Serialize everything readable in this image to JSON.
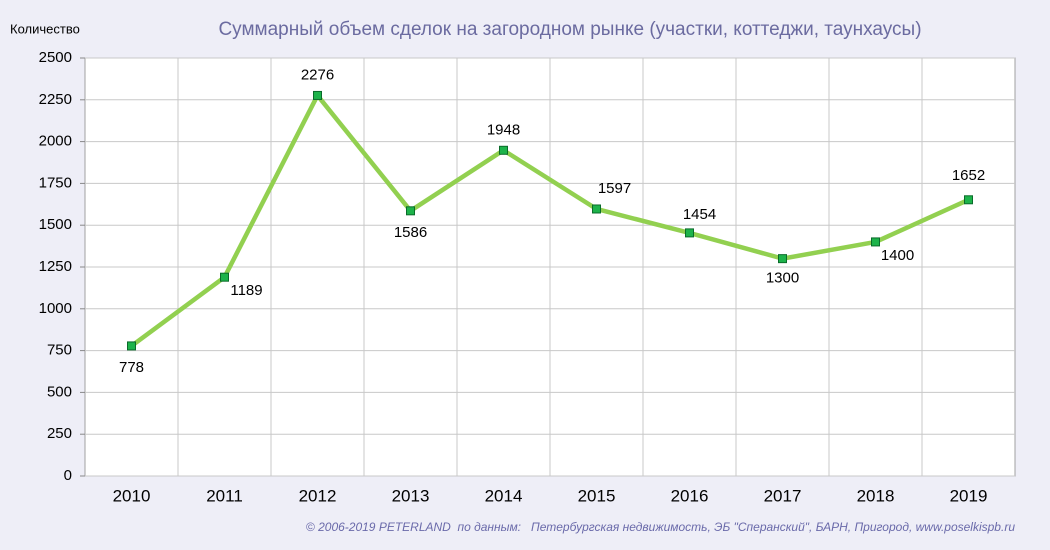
{
  "chart_data": {
    "type": "line",
    "title": "Суммарный объем сделок на загородном рынке (участки, коттеджи, таунхаусы)",
    "y_label": "Количество",
    "source": "© 2006-2019 PETERLAND  по данным:   Петербургская недвижимость, ЭБ \"Сперанский\", БАРН, Пригород, www.poselkispb.ru",
    "categories": [
      "2010",
      "2011",
      "2012",
      "2013",
      "2014",
      "2015",
      "2016",
      "2017",
      "2018",
      "2019"
    ],
    "series": [
      {
        "name": "Количество",
        "color": "#92d050",
        "values": [
          778,
          1189,
          2276,
          1586,
          1948,
          1597,
          1454,
          1300,
          1400,
          1652
        ]
      }
    ],
    "marker_color": "#1db34a",
    "ylim": [
      0,
      2500
    ],
    "yticks": [
      0,
      250,
      500,
      750,
      1000,
      1250,
      1500,
      1750,
      2000,
      2250,
      2500
    ],
    "grid": true
  }
}
